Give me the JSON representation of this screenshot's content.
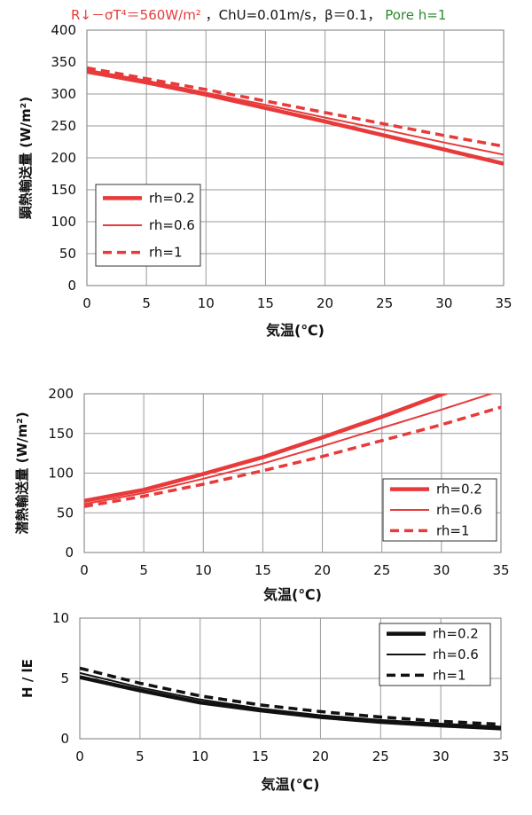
{
  "header": {
    "red_text": "R↓－σT⁴＝560W/m²",
    "black_text": "，ChU=0.01m/s，β＝0.1，",
    "green_text": "Pore h=1"
  },
  "colors": {
    "red": "#e83a3a",
    "black": "#111111",
    "green": "#2e8b2e",
    "grid": "#9a9a9a"
  },
  "chart_data": [
    {
      "type": "line",
      "title": "",
      "xlabel": "気温(℃)",
      "ylabel": "顕熱輸送量 (W/m²)",
      "xlim": [
        0,
        35
      ],
      "ylim": [
        0,
        400
      ],
      "xticks": [
        0,
        5,
        10,
        15,
        20,
        25,
        30,
        35
      ],
      "yticks": [
        0,
        50,
        100,
        150,
        200,
        250,
        300,
        350,
        400
      ],
      "grid": true,
      "legend_position": "center-left",
      "x": [
        0,
        5,
        10,
        15,
        20,
        25,
        30,
        35
      ],
      "series": [
        {
          "name": "rh=0.2",
          "style": "thick-solid",
          "color": "#e83a3a",
          "values": [
            335,
            318,
            299,
            278,
            257,
            235,
            213,
            191
          ]
        },
        {
          "name": "rh=0.6",
          "style": "thin-solid",
          "color": "#e83a3a",
          "values": [
            338,
            321,
            302,
            283,
            263,
            244,
            224,
            205
          ]
        },
        {
          "name": "rh=1",
          "style": "dashed",
          "color": "#e83a3a",
          "values": [
            341,
            324,
            307,
            289,
            271,
            253,
            235,
            218
          ]
        }
      ]
    },
    {
      "type": "line",
      "title": "",
      "xlabel": "気温(℃)",
      "ylabel": "潜熱輸送量 (W/m²)",
      "xlim": [
        0,
        35
      ],
      "ylim": [
        0,
        200
      ],
      "xticks": [
        0,
        5,
        10,
        15,
        20,
        25,
        30,
        35
      ],
      "yticks": [
        0,
        50,
        100,
        150,
        200
      ],
      "grid": true,
      "legend_position": "bottom-right",
      "x": [
        0,
        5,
        10,
        15,
        20,
        25,
        30,
        35
      ],
      "series": [
        {
          "name": "rh=0.2",
          "style": "thick-solid",
          "color": "#e83a3a",
          "values": [
            65,
            79,
            99,
            120,
            145,
            171,
            199,
            228
          ]
        },
        {
          "name": "rh=0.6",
          "style": "thin-solid",
          "color": "#e83a3a",
          "values": [
            61,
            75,
            93,
            112,
            134,
            157,
            180,
            204
          ]
        },
        {
          "name": "rh=1",
          "style": "dashed",
          "color": "#e83a3a",
          "values": [
            58,
            71,
            86,
            103,
            121,
            141,
            161,
            183
          ]
        }
      ]
    },
    {
      "type": "line",
      "title": "",
      "xlabel": "気温(℃)",
      "ylabel": "H / lE",
      "xlim": [
        0,
        35
      ],
      "ylim": [
        0,
        10
      ],
      "xticks": [
        0,
        5,
        10,
        15,
        20,
        25,
        30,
        35
      ],
      "yticks": [
        0,
        5,
        10
      ],
      "grid": true,
      "legend_position": "top-right",
      "x": [
        0,
        5,
        10,
        15,
        20,
        25,
        30,
        35
      ],
      "series": [
        {
          "name": "rh=0.2",
          "style": "thick-solid",
          "color": "#111111",
          "values": [
            5.1,
            4.0,
            3.0,
            2.35,
            1.8,
            1.4,
            1.1,
            0.85
          ]
        },
        {
          "name": "rh=0.6",
          "style": "thin-solid",
          "color": "#111111",
          "values": [
            5.45,
            4.25,
            3.25,
            2.5,
            1.95,
            1.55,
            1.25,
            1.0
          ]
        },
        {
          "name": "rh=1",
          "style": "dashed",
          "color": "#111111",
          "values": [
            5.85,
            4.6,
            3.55,
            2.8,
            2.25,
            1.8,
            1.45,
            1.2
          ]
        }
      ]
    }
  ]
}
